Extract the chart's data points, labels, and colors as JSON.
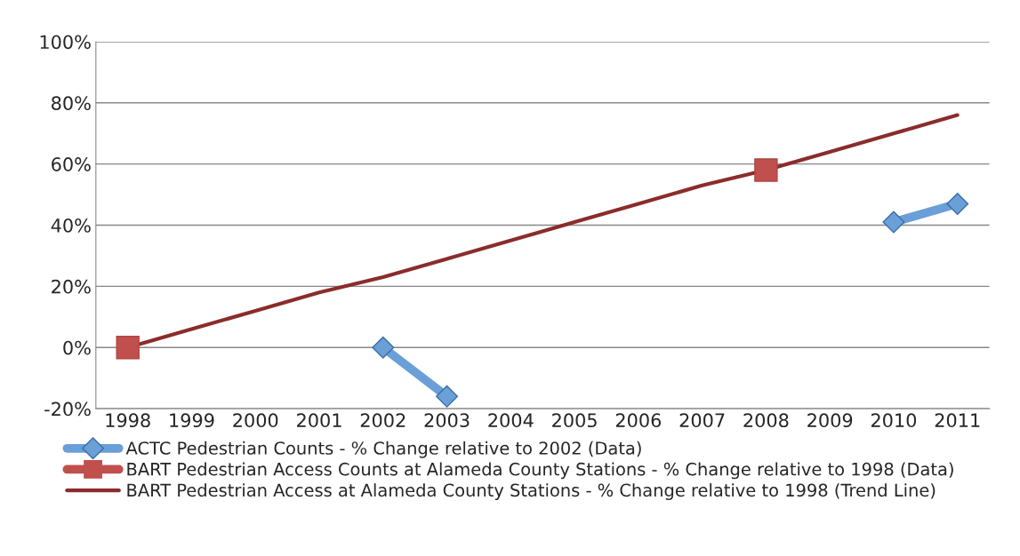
{
  "chart_data": {
    "type": "line",
    "categories": [
      "1998",
      "1999",
      "2000",
      "2001",
      "2002",
      "2003",
      "2004",
      "2005",
      "2006",
      "2007",
      "2008",
      "2009",
      "2010",
      "2011"
    ],
    "series": [
      {
        "name": "ACTC Pedestrian Counts - % Change relative to 2002 (Data)",
        "color": "#6a9fd8",
        "marker": "diamond",
        "values": [
          null,
          null,
          null,
          null,
          0,
          -16,
          null,
          null,
          null,
          null,
          null,
          null,
          41,
          47
        ]
      },
      {
        "name": "BART Pedestrian Access Counts at Alameda County Stations - % Change relative to 1998 (Data)",
        "type": "scatter",
        "color": "#c0504d",
        "marker": "square",
        "values": [
          0,
          null,
          null,
          null,
          null,
          null,
          null,
          null,
          null,
          null,
          58,
          null,
          null,
          null
        ]
      },
      {
        "name": "BART Pedestrian Access at Alameda County Stations - % Change relative to 1998 (Trend Line)",
        "color": "#8b2c2c",
        "marker": "none",
        "values": [
          0,
          6,
          12,
          18,
          23,
          29,
          35,
          41,
          47,
          53,
          58,
          64,
          70,
          76
        ]
      }
    ],
    "ylim": [
      -20,
      100
    ],
    "yticks": [
      {
        "value": -20,
        "label": "-20%"
      },
      {
        "value": 0,
        "label": "0%"
      },
      {
        "value": 20,
        "label": "20%"
      },
      {
        "value": 40,
        "label": "40%"
      },
      {
        "value": 60,
        "label": "60%"
      },
      {
        "value": 80,
        "label": "80%"
      },
      {
        "value": 100,
        "label": "100%"
      }
    ],
    "grid": "y",
    "legend": "bottom"
  }
}
